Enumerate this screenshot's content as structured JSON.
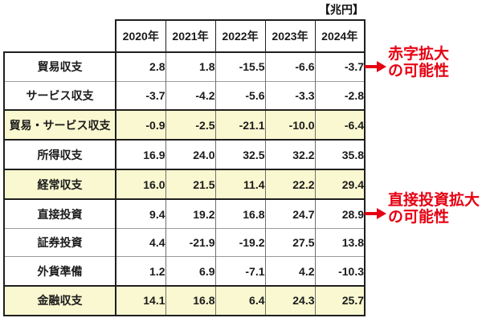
{
  "chart_data": {
    "type": "table",
    "unit": "【兆円】",
    "columns": [
      "2020年",
      "2021年",
      "2022年",
      "2023年",
      "2024年"
    ],
    "rows": [
      {
        "label": "貿易収支",
        "highlight": false,
        "values": [
          {
            "v": "2.8",
            "red": false
          },
          {
            "v": "1.8",
            "red": false
          },
          {
            "v": "-15.5",
            "red": true
          },
          {
            "v": "-6.6",
            "red": true
          },
          {
            "v": "-3.7",
            "red": true
          }
        ]
      },
      {
        "label": "サービス収支",
        "highlight": false,
        "values": [
          {
            "v": "-3.7",
            "red": true
          },
          {
            "v": "-4.2",
            "red": true
          },
          {
            "v": "-5.6",
            "red": true
          },
          {
            "v": "-3.3",
            "red": true
          },
          {
            "v": "-2.8",
            "red": true
          }
        ]
      },
      {
        "label": "貿易・サービス収支",
        "highlight": true,
        "values": [
          {
            "v": "-0.9",
            "red": true
          },
          {
            "v": "-2.5",
            "red": true
          },
          {
            "v": "-21.1",
            "red": true
          },
          {
            "v": "-10.0",
            "red": true
          },
          {
            "v": "-6.4",
            "red": true
          }
        ]
      },
      {
        "label": "所得収支",
        "highlight": false,
        "values": [
          {
            "v": "16.9",
            "red": false
          },
          {
            "v": "24.0",
            "red": false
          },
          {
            "v": "32.5",
            "red": false
          },
          {
            "v": "32.2",
            "red": false
          },
          {
            "v": "35.8",
            "red": false
          }
        ]
      },
      {
        "label": "経常収支",
        "highlight": true,
        "values": [
          {
            "v": "16.0",
            "red": false
          },
          {
            "v": "21.5",
            "red": false
          },
          {
            "v": "11.4",
            "red": false
          },
          {
            "v": "22.2",
            "red": false
          },
          {
            "v": "29.4",
            "red": false
          }
        ]
      },
      {
        "label": "直接投資",
        "highlight": false,
        "values": [
          {
            "v": "9.4",
            "red": true
          },
          {
            "v": "19.2",
            "red": true
          },
          {
            "v": "16.8",
            "red": true
          },
          {
            "v": "24.7",
            "red": true
          },
          {
            "v": "28.9",
            "red": true
          }
        ]
      },
      {
        "label": "証券投資",
        "highlight": false,
        "values": [
          {
            "v": "4.4",
            "red": true
          },
          {
            "v": "-21.9",
            "red": false
          },
          {
            "v": "-19.2",
            "red": false
          },
          {
            "v": "27.5",
            "red": true
          },
          {
            "v": "13.8",
            "red": true
          }
        ]
      },
      {
        "label": "外貨準備",
        "highlight": false,
        "values": [
          {
            "v": "1.2",
            "red": true
          },
          {
            "v": "6.9",
            "red": true
          },
          {
            "v": "-7.1",
            "red": false
          },
          {
            "v": "4.2",
            "red": true
          },
          {
            "v": "-10.3",
            "red": false
          }
        ]
      },
      {
        "label": "金融収支",
        "highlight": true,
        "values": [
          {
            "v": "14.1",
            "red": true
          },
          {
            "v": "16.8",
            "red": true
          },
          {
            "v": "6.4",
            "red": true
          },
          {
            "v": "24.3",
            "red": true
          },
          {
            "v": "25.7",
            "red": true
          }
        ]
      }
    ],
    "annotations": [
      {
        "lines": [
          "赤字拡大",
          "の可能性"
        ]
      },
      {
        "lines": [
          "直接投資拡大",
          "の可能性"
        ]
      }
    ]
  },
  "colors": {
    "accent_red": "#e60012",
    "highlight_yellow": "#faf8d0",
    "border_black": "#1f1f1f"
  }
}
